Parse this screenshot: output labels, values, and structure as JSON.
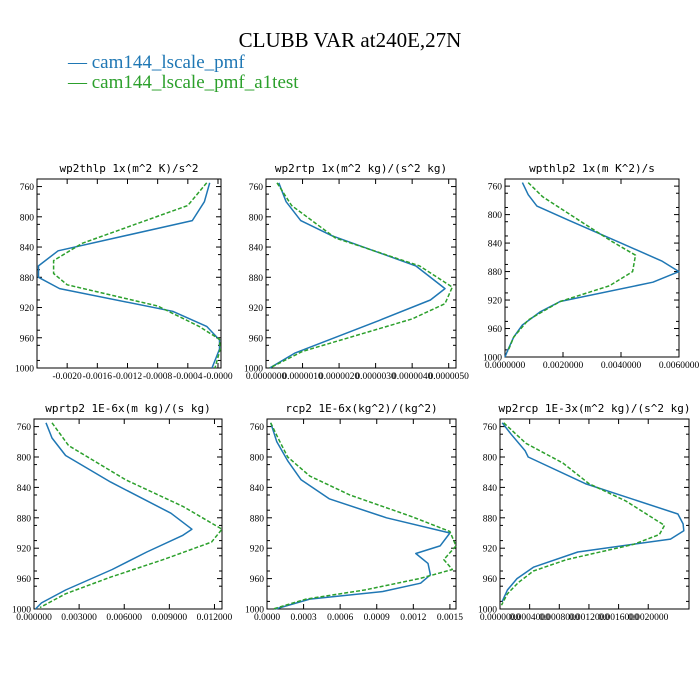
{
  "title": "CLUBB VAR at240E,27N",
  "legend": [
    {
      "label": "cam144_lscale_pmf",
      "color": "#1f77b4",
      "dash": "solid"
    },
    {
      "label": "cam144_lscale_pmf_a1test",
      "color": "#2ca02c",
      "dash": "dashed"
    }
  ],
  "chart_data": [
    {
      "type": "line",
      "title": "wp2thlp  1x(m^2 K)/s^2",
      "xlim": [
        -0.0024,
        4e-05
      ],
      "ylim": [
        1000,
        750
      ],
      "xticks": [
        -0.002,
        -0.0016,
        -0.0012,
        -0.0008,
        -0.0004,
        0.0
      ],
      "xtick_labels": [
        "-0.0020",
        "-0.0016",
        "-0.0012",
        "-0.0008",
        "-0.0004",
        "-0.0000"
      ],
      "yticks": [
        760,
        800,
        840,
        880,
        920,
        960,
        1000
      ],
      "ytick_labels": [
        "760",
        "800",
        "840",
        "880",
        "920",
        "960",
        "1000"
      ],
      "series": [
        {
          "color": "#1f77b4",
          "dash": "solid",
          "points": [
            [
              -0.00011,
              755
            ],
            [
              -0.00018,
              780
            ],
            [
              -0.00034,
              805
            ],
            [
              -0.00212,
              845
            ],
            [
              -0.00238,
              865
            ],
            [
              -0.00238,
              880
            ],
            [
              -0.0021,
              895
            ],
            [
              -0.0006,
              925
            ],
            [
              -0.00015,
              945
            ],
            [
              2e-05,
              963
            ],
            [
              2e-05,
              975
            ],
            [
              -8e-05,
              1000
            ]
          ]
        },
        {
          "color": "#2ca02c",
          "dash": "dashed",
          "points": [
            [
              -0.00015,
              755
            ],
            [
              -0.0004,
              785
            ],
            [
              -0.0018,
              835
            ],
            [
              -0.00218,
              858
            ],
            [
              -0.00218,
              875
            ],
            [
              -0.002,
              890
            ],
            [
              -0.0008,
              918
            ],
            [
              -0.00025,
              945
            ],
            [
              2e-05,
              962
            ],
            [
              3e-05,
              975
            ],
            [
              -4e-05,
              1000
            ]
          ]
        }
      ]
    },
    {
      "type": "line",
      "title": "wp2rtp  1x(m^2 kg)/(s^2 kg)",
      "xlim": [
        0,
        5.2e-06
      ],
      "ylim": [
        1000,
        750
      ],
      "xticks": [
        0,
        1e-06,
        2e-06,
        3e-06,
        4e-06,
        5e-06
      ],
      "xtick_labels": [
        "0.0000000",
        "0.0000010",
        "0.0000020",
        "0.0000030",
        "0.0000040",
        "0.0000050"
      ],
      "yticks": [
        760,
        800,
        840,
        880,
        920,
        960,
        1000
      ],
      "ytick_labels": [
        "760",
        "800",
        "840",
        "880",
        "920",
        "960",
        "1000"
      ],
      "series": [
        {
          "color": "#1f77b4",
          "dash": "solid",
          "points": [
            [
              3.5e-07,
              755
            ],
            [
              5.5e-07,
              780
            ],
            [
              9.5e-07,
              805
            ],
            [
              1.8e-06,
              825
            ],
            [
              4.1e-06,
              865
            ],
            [
              4.9e-06,
              895
            ],
            [
              4.5e-06,
              910
            ],
            [
              3.1e-06,
              937
            ],
            [
              8e-07,
              980
            ],
            [
              1e-07,
              1000
            ]
          ]
        },
        {
          "color": "#2ca02c",
          "dash": "dashed",
          "points": [
            [
              3e-07,
              755
            ],
            [
              7e-07,
              785
            ],
            [
              1.9e-06,
              828
            ],
            [
              4.2e-06,
              865
            ],
            [
              5.1e-06,
              893
            ],
            [
              4.9e-06,
              915
            ],
            [
              4e-06,
              935
            ],
            [
              1e-06,
              978
            ],
            [
              1e-07,
              1000
            ]
          ]
        }
      ]
    },
    {
      "type": "line",
      "title": "wpthlp2  1x(m K^2)/s",
      "xlim": [
        0,
        0.006
      ],
      "ylim": [
        1000,
        750
      ],
      "xticks": [
        0,
        0.002,
        0.004,
        0.006
      ],
      "xtick_labels": [
        "0.0000000",
        "0.0020000",
        "0.0040000",
        "0.0060000"
      ],
      "yticks": [
        760,
        800,
        840,
        880,
        920,
        960,
        1000
      ],
      "ytick_labels": [
        "760",
        "800",
        "840",
        "880",
        "920",
        "960",
        "1000"
      ],
      "series": [
        {
          "color": "#1f77b4",
          "dash": "solid",
          "points": [
            [
              0.0006,
              755
            ],
            [
              0.0008,
              772
            ],
            [
              0.0011,
              788
            ],
            [
              0.0022,
              808
            ],
            [
              0.004,
              840
            ],
            [
              0.0054,
              865
            ],
            [
              0.006,
              880
            ],
            [
              0.0051,
              895
            ],
            [
              0.0019,
              922
            ],
            [
              0.0012,
              937
            ],
            [
              0.0006,
              955
            ],
            [
              0.0003,
              972
            ],
            [
              0.0001,
              990
            ],
            [
              0.0,
              1000
            ]
          ]
        },
        {
          "color": "#2ca02c",
          "dash": "dashed",
          "points": [
            [
              0.0008,
              755
            ],
            [
              0.0013,
              775
            ],
            [
              0.0027,
              812
            ],
            [
              0.0037,
              838
            ],
            [
              0.0045,
              857
            ],
            [
              0.0044,
              880
            ],
            [
              0.0036,
              900
            ],
            [
              0.0019,
              922
            ],
            [
              0.0008,
              948
            ],
            [
              0.0003,
              972
            ],
            [
              0.0001,
              992
            ]
          ]
        }
      ]
    },
    {
      "type": "line",
      "title": "wprtp2  1E-6x(m kg)/(s kg)",
      "xlim": [
        0,
        0.0125
      ],
      "ylim": [
        1000,
        750
      ],
      "xticks": [
        0,
        0.003,
        0.006,
        0.009,
        0.012
      ],
      "xtick_labels": [
        "0.000000",
        "0.003000",
        "0.006000",
        "0.009000",
        "0.012000"
      ],
      "yticks": [
        760,
        800,
        840,
        880,
        920,
        960,
        1000
      ],
      "ytick_labels": [
        "760",
        "800",
        "840",
        "880",
        "920",
        "960",
        "1000"
      ],
      "series": [
        {
          "color": "#1f77b4",
          "dash": "solid",
          "points": [
            [
              0.0008,
              755
            ],
            [
              0.0012,
              775
            ],
            [
              0.0021,
              798
            ],
            [
              0.0051,
              833
            ],
            [
              0.0091,
              874
            ],
            [
              0.0105,
              895
            ],
            [
              0.0099,
              903
            ],
            [
              0.0075,
              925
            ],
            [
              0.0052,
              948
            ],
            [
              0.0021,
              975
            ],
            [
              0.0005,
              992
            ],
            [
              0.0001,
              1000
            ]
          ]
        },
        {
          "color": "#2ca02c",
          "dash": "dashed",
          "points": [
            [
              0.0012,
              755
            ],
            [
              0.0023,
              785
            ],
            [
              0.0061,
              830
            ],
            [
              0.0099,
              865
            ],
            [
              0.0125,
              895
            ],
            [
              0.0118,
              912
            ],
            [
              0.0086,
              935
            ],
            [
              0.0051,
              958
            ],
            [
              0.0021,
              980
            ],
            [
              0.0004,
              998
            ]
          ]
        }
      ]
    },
    {
      "type": "line",
      "title": "rcp2  1E-6x(kg^2)/(kg^2)",
      "xlim": [
        0,
        0.00155
      ],
      "ylim": [
        1000,
        750
      ],
      "xticks": [
        0,
        0.0003,
        0.0006,
        0.0009,
        0.0012,
        0.0015
      ],
      "xtick_labels": [
        "0.0000",
        "0.0003",
        "0.0006",
        "0.0009",
        "0.0012",
        "0.0015"
      ],
      "yticks": [
        760,
        800,
        840,
        880,
        920,
        960,
        1000
      ],
      "ytick_labels": [
        "760",
        "800",
        "840",
        "880",
        "920",
        "960",
        "1000"
      ],
      "series": [
        {
          "color": "#1f77b4",
          "dash": "solid",
          "points": [
            [
              3e-05,
              755
            ],
            [
              8e-05,
              780
            ],
            [
              0.00017,
              805
            ],
            [
              0.00028,
              830
            ],
            [
              0.00051,
              855
            ],
            [
              0.00098,
              880
            ],
            [
              0.0015,
              900
            ],
            [
              0.00142,
              917
            ],
            [
              0.00122,
              927
            ],
            [
              0.00132,
              940
            ],
            [
              0.00134,
              955
            ],
            [
              0.00126,
              966
            ],
            [
              0.00095,
              977
            ],
            [
              0.00035,
              987
            ],
            [
              7e-05,
              1000
            ]
          ]
        },
        {
          "color": "#2ca02c",
          "dash": "dashed",
          "points": [
            [
              3e-05,
              755
            ],
            [
              9e-05,
              775
            ],
            [
              0.00017,
              800
            ],
            [
              0.00035,
              825
            ],
            [
              0.00068,
              850
            ],
            [
              0.00118,
              878
            ],
            [
              0.0015,
              898
            ],
            [
              0.00155,
              917
            ],
            [
              0.00145,
              935
            ],
            [
              0.00152,
              948
            ],
            [
              0.00125,
              960
            ],
            [
              0.0008,
              975
            ],
            [
              0.00032,
              987
            ],
            [
              5e-05,
              1000
            ]
          ]
        }
      ]
    },
    {
      "type": "line",
      "title": "wp2rcp  1E-3x(m^2 kg)/(s^2 kg)",
      "xlim": [
        0,
        0.00255
      ],
      "ylim": [
        1000,
        750
      ],
      "xticks": [
        0,
        0.0004,
        0.0008,
        0.0012,
        0.0016,
        0.002
      ],
      "xtick_labels": [
        "0.0000000",
        "0.0004000",
        "0.0008000",
        "0.0012000",
        "0.0016000",
        "0.0020000"
      ],
      "yticks": [
        760,
        800,
        840,
        880,
        920,
        960,
        1000
      ],
      "ytick_labels": [
        "760",
        "800",
        "840",
        "880",
        "920",
        "960",
        "1000"
      ],
      "series": [
        {
          "color": "#1f77b4",
          "dash": "solid",
          "points": [
            [
              3e-05,
              755
            ],
            [
              0.00015,
              770
            ],
            [
              0.00034,
              792
            ],
            [
              0.00038,
              800
            ],
            [
              0.00115,
              835
            ],
            [
              0.0024,
              875
            ],
            [
              0.00247,
              888
            ],
            [
              0.00248,
              897
            ],
            [
              0.0023,
              908
            ],
            [
              0.00105,
              925
            ],
            [
              0.00045,
              945
            ],
            [
              0.00023,
              960
            ],
            [
              0.0001,
              975
            ],
            [
              3e-05,
              990
            ]
          ]
        },
        {
          "color": "#2ca02c",
          "dash": "dashed",
          "points": [
            [
              5e-05,
              755
            ],
            [
              0.00035,
              782
            ],
            [
              0.00085,
              808
            ],
            [
              0.0012,
              835
            ],
            [
              0.0017,
              858
            ],
            [
              0.00222,
              890
            ],
            [
              0.00215,
              902
            ],
            [
              0.0018,
              915
            ],
            [
              0.0009,
              935
            ],
            [
              0.00045,
              950
            ],
            [
              0.00025,
              965
            ],
            [
              0.0001,
              980
            ],
            [
              2e-05,
              995
            ]
          ]
        }
      ]
    }
  ]
}
